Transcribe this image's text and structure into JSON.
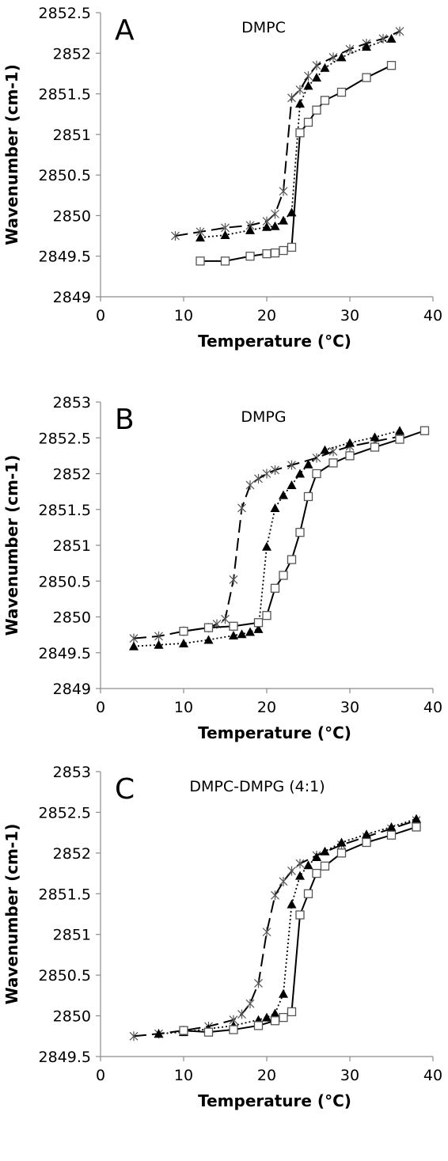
{
  "chart_data": [
    {
      "type": "line",
      "panel_label": "A",
      "title": "DMPC",
      "xlabel": "Temperature (°C)",
      "ylabel": "Wavenumber (cm-1)",
      "xlim": [
        0,
        40
      ],
      "ylim": [
        2849,
        2852.5
      ],
      "xticks": [
        0,
        10,
        20,
        30,
        40
      ],
      "yticks": [
        2849,
        2849.5,
        2850,
        2850.5,
        2851,
        2851.5,
        2852,
        2852.5
      ],
      "xtick_labels": [
        "0",
        "10",
        "20",
        "30",
        "40"
      ],
      "ytick_labels": [
        "2849",
        "2849.5",
        "2850",
        "2850.5",
        "2851",
        "2851.5",
        "2852",
        "2852.5"
      ],
      "grid": false,
      "series": [
        {
          "marker": "star",
          "line": "dashed",
          "x": [
            9,
            12,
            15,
            18,
            20,
            21,
            22,
            23,
            24,
            25,
            26,
            28,
            30,
            32,
            34,
            36
          ],
          "y": [
            2849.75,
            2849.8,
            2849.85,
            2849.88,
            2849.93,
            2850.02,
            2850.3,
            2851.45,
            2851.55,
            2851.72,
            2851.85,
            2851.95,
            2852.05,
            2852.12,
            2852.18,
            2852.27
          ]
        },
        {
          "marker": "triangle",
          "line": "dotted",
          "x": [
            12,
            15,
            18,
            20,
            21,
            22,
            23,
            24,
            25,
            26,
            27,
            29,
            32,
            35
          ],
          "y": [
            2849.73,
            2849.76,
            2849.82,
            2849.86,
            2849.87,
            2849.94,
            2850.04,
            2851.38,
            2851.6,
            2851.7,
            2851.82,
            2851.95,
            2852.08,
            2852.18
          ]
        },
        {
          "marker": "square",
          "line": "solid",
          "x": [
            12,
            15,
            18,
            20,
            21,
            22,
            23,
            24,
            25,
            26,
            27,
            29,
            32,
            35
          ],
          "y": [
            2849.44,
            2849.44,
            2849.5,
            2849.53,
            2849.54,
            2849.57,
            2849.61,
            2851.02,
            2851.15,
            2851.3,
            2851.42,
            2851.52,
            2851.7,
            2851.85
          ]
        }
      ]
    },
    {
      "type": "line",
      "panel_label": "B",
      "title": "DMPG",
      "xlabel": "Temperature (°C)",
      "ylabel": "Wavenumber (cm-1)",
      "xlim": [
        0,
        40
      ],
      "ylim": [
        2849,
        2853
      ],
      "xticks": [
        0,
        10,
        20,
        30,
        40
      ],
      "yticks": [
        2849,
        2849.5,
        2850,
        2850.5,
        2851,
        2851.5,
        2852,
        2852.5,
        2853
      ],
      "xtick_labels": [
        "0",
        "10",
        "20",
        "30",
        "40"
      ],
      "ytick_labels": [
        "2849",
        "2849.5",
        "2850",
        "2850.5",
        "2851",
        "2851.5",
        "2852",
        "2852.5",
        "2853"
      ],
      "grid": false,
      "series": [
        {
          "marker": "star",
          "line": "dashed",
          "x": [
            4,
            7,
            10,
            13,
            14,
            15,
            16,
            17,
            18,
            19,
            20,
            21,
            23,
            26,
            28,
            30,
            33,
            36
          ],
          "y": [
            2849.7,
            2849.73,
            2849.8,
            2849.85,
            2849.9,
            2849.97,
            2850.52,
            2851.52,
            2851.84,
            2851.93,
            2852.0,
            2852.05,
            2852.12,
            2852.22,
            2852.31,
            2852.38,
            2852.45,
            2852.52
          ]
        },
        {
          "marker": "triangle",
          "line": "dotted",
          "x": [
            4,
            7,
            10,
            13,
            16,
            17,
            18,
            19,
            20,
            21,
            22,
            23,
            24,
            25,
            27,
            30,
            33,
            36
          ],
          "y": [
            2849.59,
            2849.61,
            2849.63,
            2849.68,
            2849.74,
            2849.76,
            2849.79,
            2849.83,
            2850.98,
            2851.52,
            2851.7,
            2851.84,
            2852.0,
            2852.13,
            2852.33,
            2852.43,
            2852.51,
            2852.6
          ]
        },
        {
          "marker": "square",
          "line": "solid",
          "x": [
            10,
            13,
            16,
            19,
            20,
            21,
            22,
            23,
            24,
            25,
            26,
            28,
            30,
            33,
            36,
            39
          ],
          "y": [
            2849.8,
            2849.85,
            2849.87,
            2849.92,
            2850.02,
            2850.4,
            2850.58,
            2850.8,
            2851.18,
            2851.68,
            2852.0,
            2852.15,
            2852.25,
            2852.37,
            2852.48,
            2852.6
          ]
        }
      ]
    },
    {
      "type": "line",
      "panel_label": "C",
      "title": "DMPC-DMPG (4:1)",
      "xlabel": "Temperature (°C)",
      "ylabel": "Wavenumber (cm-1)",
      "xlim": [
        0,
        40
      ],
      "ylim": [
        2849.5,
        2853
      ],
      "xticks": [
        0,
        10,
        20,
        30,
        40
      ],
      "yticks": [
        2849.5,
        2850,
        2850.5,
        2851,
        2851.5,
        2852,
        2852.5,
        2853
      ],
      "xtick_labels": [
        "0",
        "10",
        "20",
        "30",
        "40"
      ],
      "ytick_labels": [
        "2849.5",
        "2850",
        "2850.5",
        "2851",
        "2851.5",
        "2852",
        "2852.5",
        "2853"
      ],
      "grid": false,
      "series": [
        {
          "marker": "star",
          "line": "dashed",
          "x": [
            4,
            7,
            10,
            13,
            16,
            17,
            18,
            19,
            20,
            21,
            22,
            23,
            24,
            26,
            29,
            32,
            35,
            38
          ],
          "y": [
            2849.75,
            2849.78,
            2849.82,
            2849.87,
            2849.95,
            2850.02,
            2850.15,
            2850.4,
            2851.03,
            2851.48,
            2851.65,
            2851.78,
            2851.87,
            2851.97,
            2852.1,
            2852.2,
            2852.3,
            2852.4
          ]
        },
        {
          "marker": "triangle",
          "line": "dotted",
          "x": [
            7,
            10,
            13,
            16,
            19,
            20,
            21,
            22,
            23,
            24,
            25,
            26,
            27,
            29,
            32,
            35,
            38
          ],
          "y": [
            2849.78,
            2849.8,
            2849.84,
            2849.88,
            2849.95,
            2849.98,
            2850.03,
            2850.27,
            2851.37,
            2851.72,
            2851.85,
            2851.95,
            2852.02,
            2852.13,
            2852.23,
            2852.32,
            2852.42
          ]
        },
        {
          "marker": "square",
          "line": "solid",
          "x": [
            10,
            13,
            16,
            19,
            21,
            22,
            23,
            24,
            25,
            26,
            27,
            29,
            32,
            35,
            38
          ],
          "y": [
            2849.82,
            2849.8,
            2849.83,
            2849.88,
            2849.94,
            2849.98,
            2850.05,
            2851.24,
            2851.5,
            2851.75,
            2851.84,
            2852.0,
            2852.13,
            2852.22,
            2852.32
          ]
        }
      ]
    }
  ]
}
